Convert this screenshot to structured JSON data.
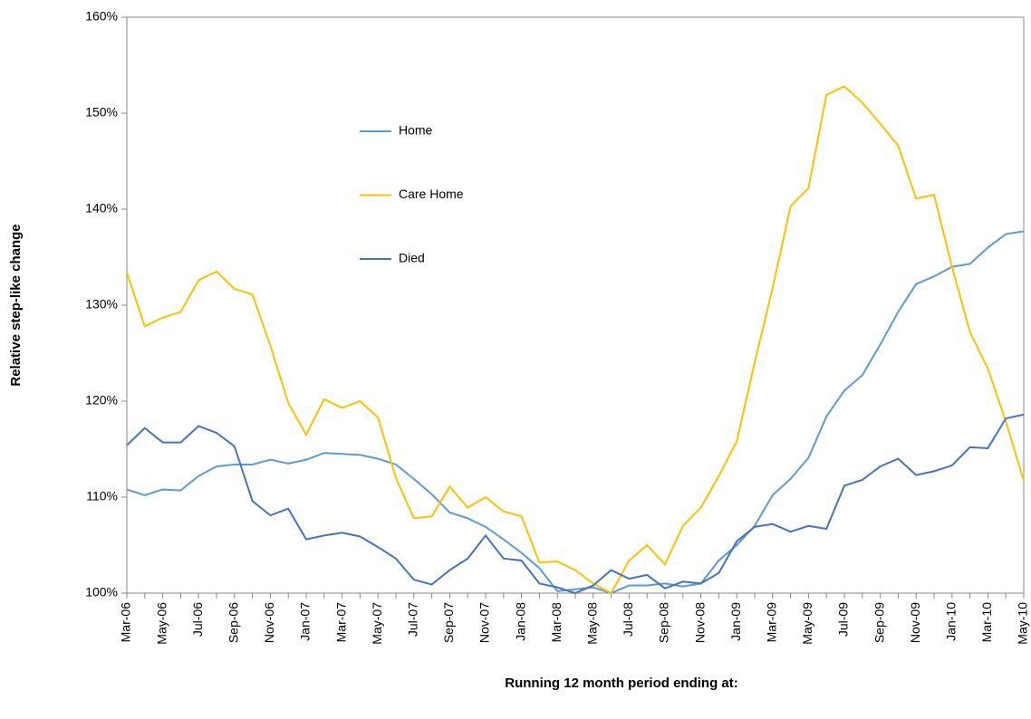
{
  "chart_data": {
    "type": "line",
    "y_label": "Relative step-like change",
    "x_label": "Running 12 month period ending at:",
    "categories": [
      "Mar-06",
      null,
      "May-06",
      null,
      "Jul-06",
      null,
      "Sep-06",
      null,
      "Nov-06",
      null,
      "Jan-07",
      null,
      "Mar-07",
      null,
      "May-07",
      null,
      "Jul-07",
      null,
      "Sep-07",
      null,
      "Nov-07",
      null,
      "Jan-08",
      null,
      "Mar-08",
      null,
      "May-08",
      null,
      "Jul-08",
      null,
      "Sep-08",
      null,
      "Nov-08",
      null,
      "Jan-09",
      null,
      "Mar-09",
      null,
      "May-09",
      null,
      "Jul-09",
      null,
      "Sep-09",
      null,
      "Nov-09",
      null,
      "Jan-10",
      null,
      "Mar-10",
      null,
      "May-10"
    ],
    "series": [
      {
        "name": "Home",
        "color": "#5b9bd5",
        "values": [
          110.8,
          110.2,
          110.8,
          110.7,
          112.2,
          113.2,
          113.4,
          113.4,
          113.9,
          113.5,
          113.9,
          114.6,
          114.5,
          114.4,
          114.0,
          113.4,
          111.9,
          110.3,
          108.4,
          107.8,
          106.9,
          105.6,
          104.2,
          102.6,
          100.2,
          100.4,
          100.6,
          100.0,
          100.8,
          100.8,
          101.0,
          100.7,
          101.0,
          103.4,
          105.0,
          107.0,
          110.2,
          111.9,
          114.1,
          118.4,
          121.1,
          122.7,
          125.9,
          129.3,
          132.2,
          133.0,
          134.0,
          134.3,
          136.0,
          137.4,
          137.7
        ]
      },
      {
        "name": "Care Home",
        "color": "#ffc000",
        "values": [
          133.4,
          127.8,
          128.7,
          129.3,
          132.6,
          133.5,
          131.7,
          131.1,
          125.8,
          119.8,
          116.5,
          120.2,
          119.3,
          120.0,
          118.3,
          112.0,
          107.8,
          108.0,
          111.1,
          108.9,
          110.0,
          108.5,
          108.0,
          103.2,
          103.3,
          102.4,
          101.0,
          100.0,
          103.4,
          105.0,
          103.0,
          107.0,
          108.9,
          112.2,
          115.8,
          124.0,
          131.8,
          140.3,
          142.2,
          151.9,
          152.8,
          151.1,
          148.9,
          146.6,
          141.1,
          141.5,
          134.0,
          127.2,
          123.4,
          117.9,
          111.7
        ]
      },
      {
        "name": "Died",
        "color": "#4472c4",
        "values": [
          115.4,
          117.2,
          115.7,
          115.7,
          117.4,
          116.7,
          115.3,
          109.6,
          108.1,
          108.8,
          105.6,
          106.0,
          106.3,
          105.9,
          104.8,
          103.6,
          101.4,
          100.9,
          102.4,
          103.6,
          106.0,
          103.6,
          103.4,
          101.0,
          100.6,
          100.0,
          100.8,
          102.4,
          101.5,
          101.9,
          100.5,
          101.2,
          101.0,
          102.1,
          105.4,
          106.9,
          107.2,
          106.4,
          107.0,
          106.7,
          111.2,
          111.8,
          113.2,
          114.0,
          112.3,
          112.7,
          113.3,
          115.2,
          115.1,
          118.2,
          118.6
        ]
      }
    ],
    "ylim": [
      100,
      160
    ],
    "yticks": [
      {
        "value": 100,
        "label": "100%"
      },
      {
        "value": 110,
        "label": "110%"
      },
      {
        "value": 120,
        "label": "120%"
      },
      {
        "value": 130,
        "label": "130%"
      },
      {
        "value": 140,
        "label": "140%"
      },
      {
        "value": 150,
        "label": "150%"
      },
      {
        "value": 160,
        "label": "160%"
      }
    ],
    "grid": false
  }
}
